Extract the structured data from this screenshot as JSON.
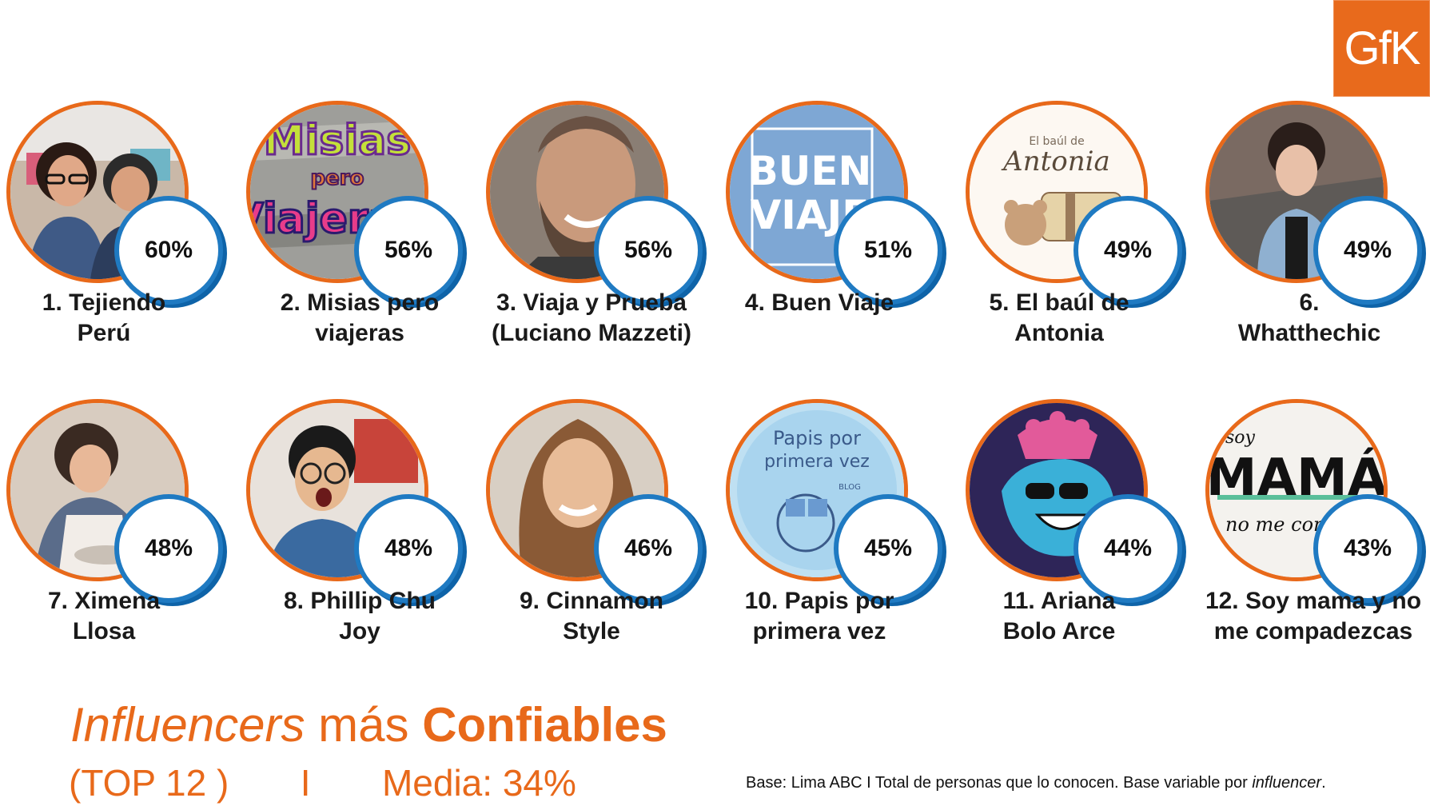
{
  "logo": {
    "text": "GfK"
  },
  "items": [
    {
      "name": "1. Tejiendo\nPerú",
      "value": "60%",
      "icon": "photo-two-women"
    },
    {
      "name": "2. Misias pero\nviajeras",
      "value": "56%",
      "icon": "logo-misias-pero-viajeras"
    },
    {
      "name": "3. Viaja y Prueba\n(Luciano Mazzeti)",
      "value": "56%",
      "icon": "photo-smiling-man"
    },
    {
      "name": "4. Buen Viaje",
      "value": "51%",
      "icon": "logo-buen-viaje"
    },
    {
      "name": "5. El baúl de\nAntonia",
      "value": "49%",
      "icon": "logo-el-baul-de-antonia"
    },
    {
      "name": "6.\nWhatthechic",
      "value": "49%",
      "icon": "photo-woman-denim"
    },
    {
      "name": "7. Ximena\nLlosa",
      "value": "48%",
      "icon": "photo-woman-baking"
    },
    {
      "name": "8. Phillip Chu\nJoy",
      "value": "48%",
      "icon": "photo-man-glasses"
    },
    {
      "name": "9. Cinnamon\nStyle",
      "value": "46%",
      "icon": "photo-woman-smiling"
    },
    {
      "name": "10. Papis por\nprimera vez",
      "value": "45%",
      "icon": "logo-papis-por-primera-vez"
    },
    {
      "name": "11. Ariana\nBolo Arce",
      "value": "44%",
      "icon": "logo-ariana-bolo-arce"
    },
    {
      "name": "12. Soy mama y no\nme compadezcas",
      "value": "43%",
      "icon": "logo-soy-mama"
    }
  ],
  "logo_texts": {
    "misias": [
      "Misias",
      "pero",
      "Viajeras"
    ],
    "buen_viaje": [
      "BUEN",
      "VIAJE"
    ],
    "baul": [
      "El baúl de",
      "Antonia"
    ],
    "papis": [
      "Papis por",
      "primera vez",
      "BLOG"
    ],
    "soy_mama": [
      "soy",
      "MAMÁ",
      "no me compadezcas"
    ]
  },
  "title": {
    "part1": "Influencers",
    "part2": " más ",
    "part3": "Confiables"
  },
  "subtitle": "(TOP 12 )       I       Media: 34%",
  "base": {
    "text": "Base: Lima ABC I Total de personas que lo conocen. Base variable por ",
    "italic": "influencer",
    "end": "."
  },
  "colors": {
    "orange": "#e8691a",
    "blue": "#1f7ac2"
  }
}
